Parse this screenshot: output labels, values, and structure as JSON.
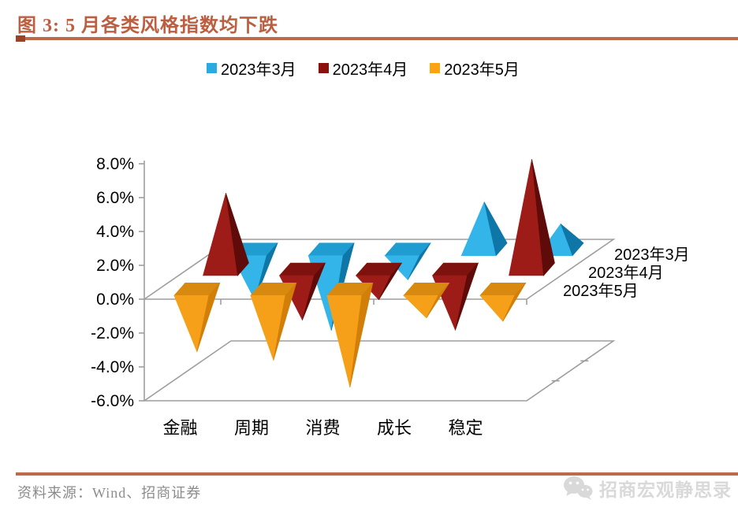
{
  "header": {
    "title": "图 3: 5 月各类风格指数均下跌"
  },
  "chart_data": {
    "type": "bar",
    "subtype": "3d-pyramid-columns",
    "title": "",
    "xlabel": "",
    "ylabel": "",
    "unit": "%",
    "ylim": [
      -6,
      8
    ],
    "ytick_step": 2,
    "ytick_labels": [
      "8.0%",
      "6.0%",
      "4.0%",
      "2.0%",
      "0.0%",
      "-2.0%",
      "-4.0%",
      "-6.0%"
    ],
    "grid": "off",
    "legend_position": "top",
    "categories": [
      "金融",
      "周期",
      "消费",
      "成长",
      "稳定"
    ],
    "series": [
      {
        "name": "2023年3月",
        "values": [
          -3.0,
          -4.8,
          -1.8,
          2.8,
          1.5
        ],
        "colors": {
          "legend": "#29ABE2",
          "front": "#33B5E9",
          "side": "#0E77A7",
          "top": "#1F9CD0"
        }
      },
      {
        "name": "2023年4月",
        "values": [
          4.5,
          -3.0,
          -1.8,
          -3.6,
          6.5
        ],
        "colors": {
          "legend": "#8B100C",
          "front": "#9E1C18",
          "side": "#5F0B09",
          "top": "#7E120E"
        }
      },
      {
        "name": "2023年5月",
        "values": [
          -3.7,
          -4.2,
          -5.8,
          -1.7,
          -1.9
        ],
        "colors": {
          "legend": "#FCA311",
          "front": "#F6A019",
          "side": "#D27F0A",
          "top": "#D8890F"
        }
      }
    ],
    "series_axis_labels": [
      "2023年3月",
      "2023年4月",
      "2023年5月"
    ]
  },
  "footer": {
    "source": "资料来源：Wind、招商证券",
    "watermark": "招商宏观静思录"
  },
  "colors": {
    "accent_rule": "#BD6A4B",
    "accent_rule_cap": "#9A432A",
    "title_text": "#BC5F41",
    "axis_line": "#9E9E9E",
    "label_text": "#000000",
    "source_text": "#8C8C8C",
    "watermark_text": "#D9D9D9"
  }
}
